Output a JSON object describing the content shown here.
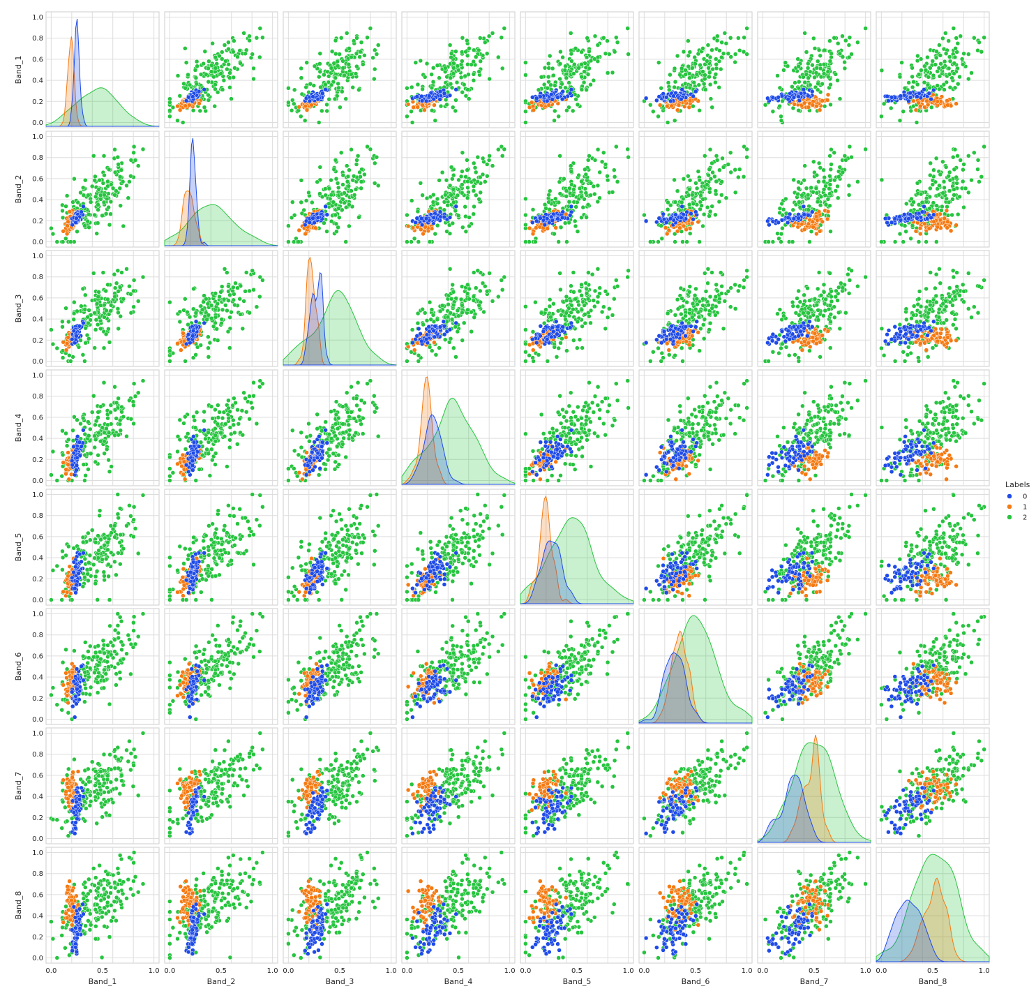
{
  "chart_data": {
    "type": "scatter",
    "layout": "pairplot-matrix",
    "variables": [
      "Band_1",
      "Band_2",
      "Band_3",
      "Band_4",
      "Band_5",
      "Band_6",
      "Band_7",
      "Band_8"
    ],
    "diagonal": "kde",
    "xlim": [
      -0.05,
      1.05
    ],
    "ylim": [
      -0.05,
      1.05
    ],
    "ticks": [
      0.0,
      0.2,
      0.4,
      0.6,
      0.8,
      1.0
    ],
    "tick_labels": [
      "0.0",
      "0.2",
      "0.4",
      "0.6",
      "0.8",
      "1.0"
    ],
    "x_tick_labels": [
      "0.0",
      "0.5",
      "1.0"
    ],
    "x_ticks": [
      0.0,
      0.5,
      1.0
    ],
    "grid": true,
    "legend": {
      "title": "Labels",
      "placement": "right-center",
      "entries": [
        {
          "label": "0",
          "color": "#1f4be8"
        },
        {
          "label": "1",
          "color": "#f57a12"
        },
        {
          "label": "2",
          "color": "#27c43f"
        }
      ]
    },
    "clusters": {
      "0": {
        "mean": [
          0.25,
          0.23,
          0.27,
          0.25,
          0.26,
          0.32,
          0.3,
          0.3
        ],
        "spread": [
          0.03,
          0.03,
          0.05,
          0.1,
          0.1,
          0.11,
          0.12,
          0.12
        ]
      },
      "1": {
        "mean": [
          0.19,
          0.18,
          0.22,
          0.18,
          0.19,
          0.35,
          0.48,
          0.52
        ],
        "spread": [
          0.03,
          0.05,
          0.05,
          0.07,
          0.07,
          0.08,
          0.08,
          0.1
        ]
      },
      "2": {
        "mean": [
          0.45,
          0.42,
          0.46,
          0.45,
          0.45,
          0.5,
          0.5,
          0.52
        ],
        "spread": [
          0.2,
          0.2,
          0.2,
          0.2,
          0.2,
          0.2,
          0.2,
          0.2
        ]
      }
    },
    "points_per_cluster": {
      "0": 60,
      "1": 60,
      "2": 170
    }
  }
}
